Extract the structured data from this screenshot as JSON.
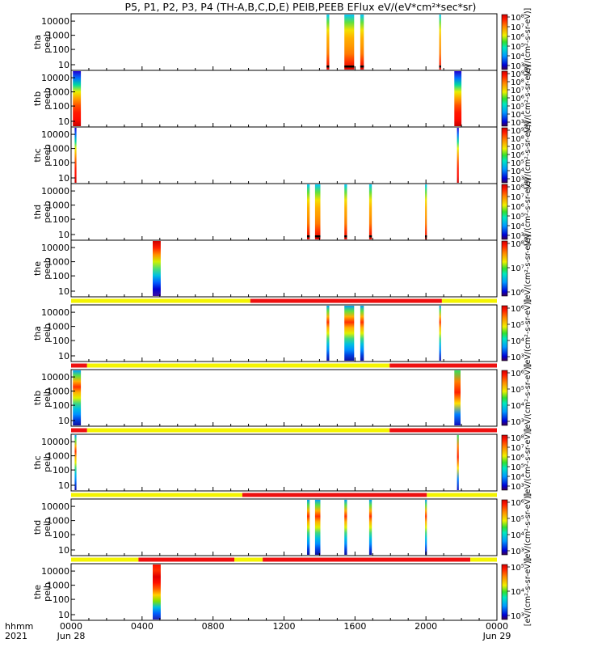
{
  "chart_data": {
    "type": "heatmap",
    "title": "P5, P1, P2, P3, P4 (TH-A,B,C,D,E) PEIB,PEEB EFlux eV/(eV*cm²*sec*sr)",
    "x_axis": {
      "label_line1": "hhmm",
      "label_line2": "2021",
      "range_hours": [
        0,
        24
      ],
      "ticks": [
        {
          "hour": 0,
          "label": "0000",
          "sub": "Jun 28"
        },
        {
          "hour": 4,
          "label": "0400",
          "sub": ""
        },
        {
          "hour": 8,
          "label": "0800",
          "sub": ""
        },
        {
          "hour": 12,
          "label": "1200",
          "sub": ""
        },
        {
          "hour": 16,
          "label": "1600",
          "sub": ""
        },
        {
          "hour": 20,
          "label": "2000",
          "sub": ""
        },
        {
          "hour": 24,
          "label": "0000",
          "sub": "Jun 29"
        }
      ]
    },
    "y_ticks": [
      "10000",
      "1000",
      "100",
      "10"
    ],
    "colorbar_units": "[eV/(cm²-s-sr-eV)]",
    "panels": [
      {
        "id": "tha-peeb",
        "label1": "tha",
        "label2": "peeb",
        "cbar": [
          "10⁸",
          "10⁷",
          "10⁶",
          "10⁵",
          "10⁴",
          "10³"
        ],
        "segments": [
          {
            "start": 14.4,
            "end": 14.55,
            "profile": "high_orange",
            "floor": true
          },
          {
            "start": 15.4,
            "end": 15.95,
            "profile": "high_orange",
            "floor": true
          },
          {
            "start": 16.3,
            "end": 16.5,
            "profile": "high_orange",
            "floor": true
          },
          {
            "start": 20.75,
            "end": 20.85,
            "profile": "high_orange",
            "floor": true
          }
        ],
        "bar": null
      },
      {
        "id": "thb-peeb",
        "label1": "thb",
        "label2": "peeb",
        "cbar": [
          "10⁹",
          "10⁸",
          "10⁷",
          "10⁶",
          "10⁵",
          "10⁴",
          "10³"
        ],
        "segments": [
          {
            "start": 0.1,
            "end": 0.55,
            "profile": "low_red",
            "floor": false
          },
          {
            "start": 21.6,
            "end": 22.0,
            "profile": "low_red",
            "floor": false
          }
        ],
        "bar": null
      },
      {
        "id": "thc-peeb",
        "label1": "thc",
        "label2": "peeb",
        "cbar": [
          "10⁹",
          "10⁸",
          "10⁷",
          "10⁶",
          "10⁵",
          "10⁴",
          "10³"
        ],
        "segments": [
          {
            "start": 0.2,
            "end": 0.3,
            "profile": "low_red",
            "floor": false
          },
          {
            "start": 21.75,
            "end": 21.85,
            "profile": "low_red",
            "floor": false
          }
        ],
        "bar": null
      },
      {
        "id": "thd-peeb",
        "label1": "thd",
        "label2": "peeb",
        "cbar": [
          "10⁸",
          "10⁷",
          "10⁶",
          "10⁵",
          "10⁴",
          "10³"
        ],
        "segments": [
          {
            "start": 13.3,
            "end": 13.45,
            "profile": "high_orange",
            "floor": true
          },
          {
            "start": 13.75,
            "end": 14.05,
            "profile": "high_orange",
            "floor": true
          },
          {
            "start": 15.4,
            "end": 15.55,
            "profile": "high_orange",
            "floor": true
          },
          {
            "start": 16.8,
            "end": 16.95,
            "profile": "high_orange",
            "floor": true
          },
          {
            "start": 19.95,
            "end": 20.05,
            "profile": "high_orange",
            "floor": true
          }
        ],
        "bar": null
      },
      {
        "id": "the-peeb",
        "label1": "the",
        "label2": "peeb",
        "cbar": [
          "10⁸",
          "10⁷",
          "10⁶"
        ],
        "segments": [
          {
            "start": 4.6,
            "end": 5.05,
            "profile": "the_peeb",
            "floor": false
          }
        ],
        "bar": {
          "segments": [
            {
              "start": 0,
              "end": 10.1,
              "state": "yellow"
            },
            {
              "start": 10.1,
              "end": 20.9,
              "state": "red"
            },
            {
              "start": 20.9,
              "end": 24,
              "state": "yellow"
            }
          ]
        }
      },
      {
        "id": "tha-peib",
        "label1": "tha",
        "label2": "peib",
        "cbar": [
          "10⁶",
          "10⁵",
          "10⁴",
          "10³"
        ],
        "segments": [
          {
            "start": 14.4,
            "end": 14.55,
            "profile": "ion_mixed",
            "floor": false
          },
          {
            "start": 15.4,
            "end": 15.95,
            "profile": "ion_mixed",
            "floor": false
          },
          {
            "start": 16.3,
            "end": 16.5,
            "profile": "ion_mixed",
            "floor": false
          },
          {
            "start": 20.75,
            "end": 20.85,
            "profile": "ion_mixed",
            "floor": false
          }
        ],
        "bar": {
          "segments": [
            {
              "start": 0,
              "end": 0.9,
              "state": "red"
            },
            {
              "start": 0.9,
              "end": 17.95,
              "state": "yellow"
            },
            {
              "start": 17.95,
              "end": 24,
              "state": "red"
            }
          ]
        }
      },
      {
        "id": "thb-peib",
        "label1": "thb",
        "label2": "peib",
        "cbar": [
          "10⁶",
          "10⁵",
          "10⁴",
          "10³"
        ],
        "segments": [
          {
            "start": 0.1,
            "end": 0.55,
            "profile": "ion_mixed",
            "floor": false
          },
          {
            "start": 21.6,
            "end": 21.95,
            "profile": "ion_short",
            "floor": false
          }
        ],
        "bar": {
          "segments": [
            {
              "start": 0,
              "end": 0.9,
              "state": "red"
            },
            {
              "start": 0.9,
              "end": 17.95,
              "state": "yellow"
            },
            {
              "start": 17.95,
              "end": 24,
              "state": "red"
            }
          ]
        }
      },
      {
        "id": "thc-peib",
        "label1": "thc",
        "label2": "peib",
        "cbar": [
          "10⁸",
          "10⁷",
          "10⁶",
          "10⁵",
          "10⁴",
          "10³"
        ],
        "segments": [
          {
            "start": 0.2,
            "end": 0.3,
            "profile": "ion_mixed",
            "floor": false
          },
          {
            "start": 21.75,
            "end": 21.85,
            "profile": "ion_short",
            "floor": false
          }
        ],
        "bar": {
          "segments": [
            {
              "start": 0,
              "end": 9.65,
              "state": "yellow"
            },
            {
              "start": 9.65,
              "end": 20.05,
              "state": "red"
            },
            {
              "start": 20.05,
              "end": 24,
              "state": "yellow"
            }
          ]
        }
      },
      {
        "id": "thd-peib",
        "label1": "thd",
        "label2": "peib",
        "cbar": [
          "10⁶",
          "10⁵",
          "10⁴",
          "10³"
        ],
        "segments": [
          {
            "start": 13.3,
            "end": 13.45,
            "profile": "ion_mixed",
            "floor": false
          },
          {
            "start": 13.75,
            "end": 14.05,
            "profile": "ion_mixed",
            "floor": false
          },
          {
            "start": 15.4,
            "end": 15.55,
            "profile": "ion_mixed",
            "floor": false
          },
          {
            "start": 16.8,
            "end": 16.95,
            "profile": "ion_mixed",
            "floor": false
          },
          {
            "start": 19.95,
            "end": 20.05,
            "profile": "ion_mixed",
            "floor": false
          }
        ],
        "bar": {
          "segments": [
            {
              "start": 0,
              "end": 3.8,
              "state": "yellow"
            },
            {
              "start": 3.8,
              "end": 9.2,
              "state": "red"
            },
            {
              "start": 9.2,
              "end": 10.8,
              "state": "yellow"
            },
            {
              "start": 10.8,
              "end": 22.5,
              "state": "red"
            },
            {
              "start": 22.5,
              "end": 24,
              "state": "yellow"
            }
          ]
        }
      },
      {
        "id": "the-peib",
        "label1": "the",
        "label2": "peib",
        "cbar": [
          "10⁵",
          "10⁴",
          "10³"
        ],
        "segments": [
          {
            "start": 4.6,
            "end": 5.05,
            "profile": "the_peib",
            "floor": false
          }
        ],
        "bar": null
      }
    ]
  }
}
